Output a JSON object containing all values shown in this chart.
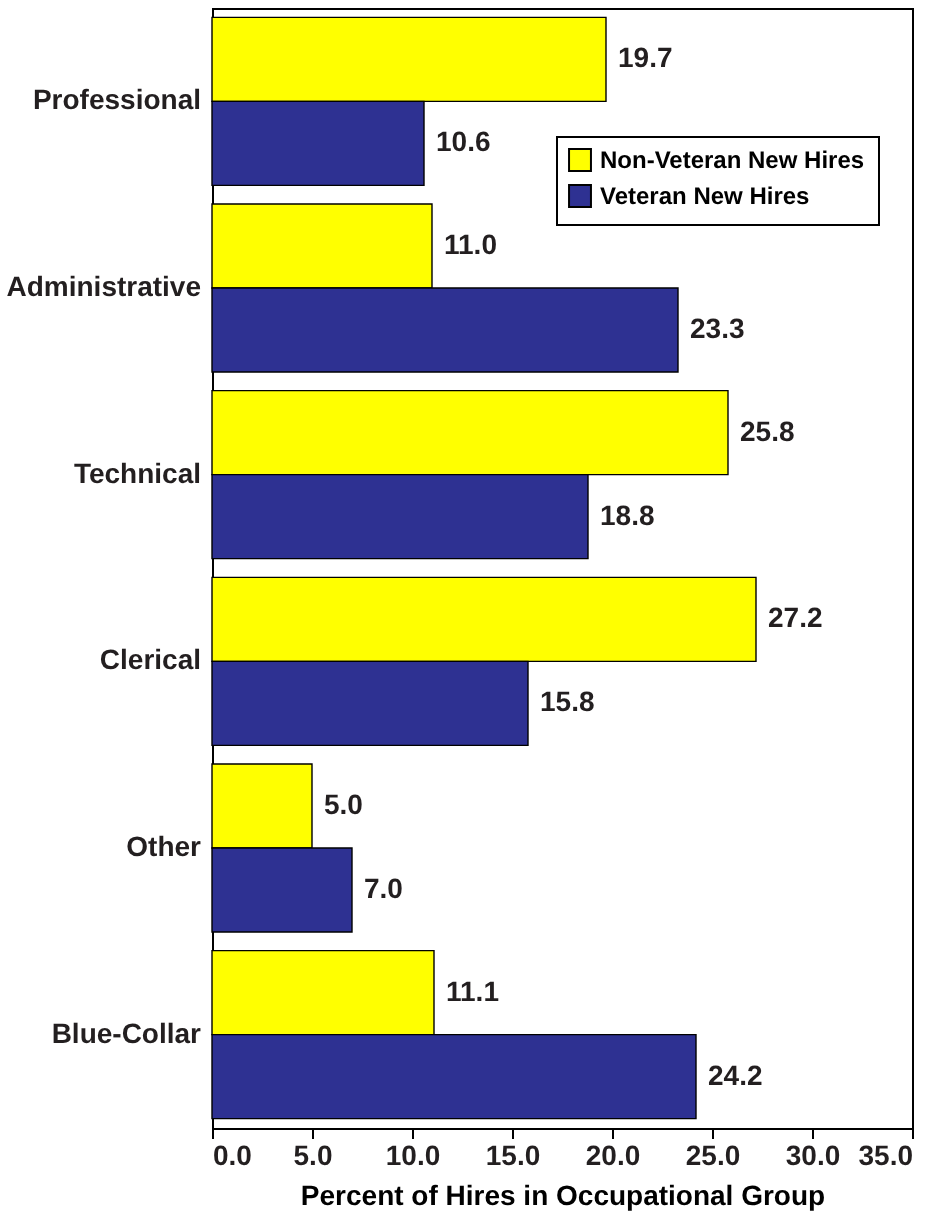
{
  "chart_data": {
    "type": "bar",
    "orientation": "horizontal",
    "xlabel": "Percent of Hires in Occupational Group",
    "categories": [
      "Professional",
      "Administrative",
      "Technical",
      "Clerical",
      "Other",
      "Blue-Collar"
    ],
    "series": [
      {
        "name": "Non-Veteran New Hires",
        "color": "#ffff00",
        "values": [
          19.7,
          11.0,
          25.8,
          27.2,
          5.0,
          11.1
        ],
        "value_labels": [
          "19.7",
          "11.0",
          "25.8",
          "27.2",
          "5.0",
          "11.1"
        ]
      },
      {
        "name": "Veteran New Hires",
        "color": "#2e3192",
        "values": [
          10.6,
          23.3,
          18.8,
          15.8,
          7.0,
          24.2
        ],
        "value_labels": [
          "10.6",
          "23.3",
          "18.8",
          "15.8",
          "7.0",
          "24.2"
        ]
      }
    ],
    "xlim": [
      0,
      35
    ],
    "xticks": [
      {
        "value": 0,
        "label": "0.0"
      },
      {
        "value": 5,
        "label": "5.0"
      },
      {
        "value": 10,
        "label": "10.0"
      },
      {
        "value": 15,
        "label": "15.0"
      },
      {
        "value": 20,
        "label": "20.0"
      },
      {
        "value": 25,
        "label": "25.0"
      },
      {
        "value": 30,
        "label": "30.0"
      },
      {
        "value": 35,
        "label": "35.0"
      }
    ],
    "legend": "top right",
    "grid": false
  }
}
